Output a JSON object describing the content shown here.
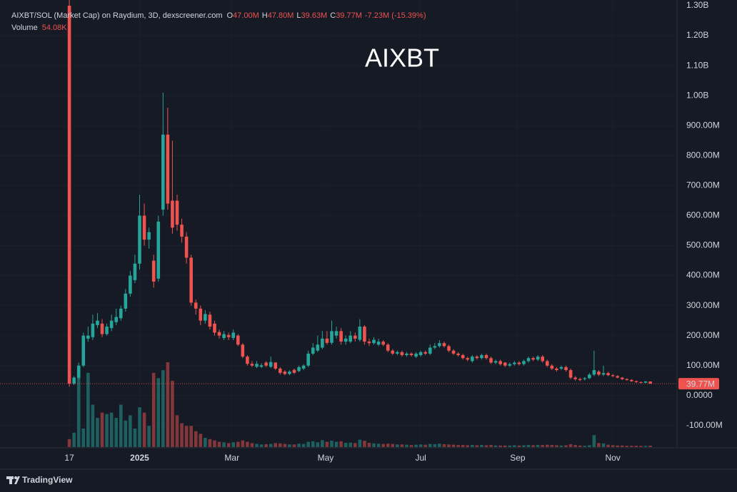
{
  "chart_data": {
    "type": "candlestick",
    "title": "AIXBT",
    "header": {
      "symbol": "AIXBT/SOL (Market Cap) on Raydium, 3D, dexscreener.com",
      "fields": [
        {
          "key": "O",
          "text": "47.00M"
        },
        {
          "key": "H",
          "text": "47.80M"
        },
        {
          "key": "L",
          "text": "39.63M"
        },
        {
          "key": "C",
          "text": "39.77M"
        }
      ],
      "change": "-7.23M (-15.39%)",
      "volume_key": "Volume",
      "volume_text": "54.08K"
    },
    "open": [
      1300,
      40,
      60,
      100,
      190,
      195,
      235,
      240,
      205,
      225,
      245,
      258,
      290,
      340,
      385,
      440,
      600,
      520,
      450,
      390,
      620,
      870,
      650,
      650,
      570,
      530,
      460,
      310,
      290,
      250,
      270,
      240,
      212,
      192,
      202,
      192,
      200,
      170,
      130,
      106,
      96,
      96,
      110,
      96,
      110,
      90,
      80,
      72,
      86,
      82,
      90,
      100,
      140,
      150,
      160,
      190,
      176,
      200,
      215,
      180,
      180,
      200,
      186,
      230,
      180,
      175,
      170,
      180,
      170,
      150,
      140,
      145,
      135,
      140,
      130,
      135,
      145,
      140,
      160,
      165,
      175,
      165,
      150,
      140,
      135,
      125,
      115,
      130,
      125,
      135,
      125,
      110,
      115,
      110,
      100,
      105,
      110,
      105,
      115,
      125,
      120,
      130,
      115,
      100,
      90,
      90,
      95,
      85,
      60,
      55,
      55,
      58,
      70,
      80,
      70,
      75,
      68,
      65,
      60,
      55,
      52,
      48,
      45,
      43,
      47
    ],
    "high": [
      1320,
      65,
      110,
      210,
      230,
      270,
      275,
      255,
      240,
      270,
      290,
      300,
      355,
      415,
      470,
      670,
      640,
      560,
      470,
      600,
      1010,
      960,
      850,
      670,
      590,
      545,
      470,
      320,
      300,
      285,
      280,
      250,
      220,
      215,
      210,
      220,
      205,
      175,
      135,
      115,
      115,
      108,
      115,
      130,
      112,
      95,
      85,
      85,
      90,
      100,
      105,
      150,
      175,
      200,
      215,
      215,
      250,
      230,
      225,
      200,
      215,
      210,
      255,
      235,
      190,
      195,
      190,
      185,
      175,
      155,
      150,
      150,
      145,
      145,
      145,
      150,
      150,
      170,
      175,
      185,
      180,
      170,
      155,
      145,
      140,
      130,
      135,
      135,
      140,
      140,
      130,
      120,
      120,
      112,
      110,
      115,
      115,
      120,
      130,
      130,
      135,
      135,
      120,
      105,
      95,
      100,
      100,
      90,
      65,
      60,
      62,
      75,
      150,
      85,
      100,
      80,
      72,
      68,
      62,
      58,
      55,
      50,
      47,
      49,
      47.8
    ],
    "low": [
      30,
      35,
      55,
      95,
      180,
      185,
      225,
      195,
      200,
      215,
      235,
      250,
      280,
      330,
      375,
      420,
      500,
      490,
      360,
      380,
      600,
      620,
      540,
      550,
      510,
      440,
      300,
      270,
      235,
      240,
      220,
      200,
      190,
      185,
      185,
      185,
      165,
      125,
      100,
      95,
      92,
      92,
      95,
      92,
      85,
      70,
      68,
      68,
      72,
      78,
      85,
      95,
      135,
      145,
      155,
      170,
      170,
      190,
      170,
      170,
      175,
      180,
      180,
      170,
      165,
      170,
      165,
      165,
      145,
      135,
      135,
      130,
      130,
      130,
      125,
      130,
      135,
      135,
      155,
      160,
      160,
      145,
      135,
      130,
      120,
      115,
      110,
      120,
      120,
      120,
      105,
      105,
      100,
      95,
      95,
      100,
      100,
      100,
      110,
      115,
      115,
      110,
      95,
      85,
      80,
      85,
      80,
      55,
      50,
      48,
      50,
      55,
      65,
      65,
      65,
      65,
      62,
      58,
      52,
      50,
      46,
      43,
      41,
      42,
      39.63
    ],
    "close": [
      40,
      60,
      100,
      200,
      200,
      240,
      250,
      205,
      230,
      250,
      262,
      290,
      340,
      400,
      440,
      600,
      520,
      545,
      380,
      580,
      870,
      640,
      560,
      570,
      530,
      460,
      310,
      290,
      250,
      272,
      230,
      210,
      200,
      205,
      195,
      210,
      170,
      130,
      106,
      100,
      106,
      101,
      100,
      112,
      90,
      76,
      72,
      80,
      76,
      95,
      100,
      140,
      160,
      170,
      190,
      176,
      215,
      215,
      180,
      190,
      200,
      190,
      230,
      180,
      175,
      186,
      180,
      170,
      150,
      140,
      145,
      135,
      140,
      135,
      140,
      145,
      140,
      160,
      165,
      175,
      165,
      150,
      140,
      135,
      125,
      120,
      130,
      125,
      135,
      125,
      110,
      115,
      105,
      100,
      105,
      110,
      105,
      115,
      125,
      120,
      130,
      115,
      100,
      90,
      85,
      95,
      85,
      60,
      55,
      52,
      58,
      70,
      85,
      70,
      75,
      68,
      65,
      60,
      55,
      52,
      48,
      45,
      43,
      47,
      39.77
    ],
    "volume": [
      300000,
      540000,
      2900000,
      700000,
      2800000,
      1600000,
      1100000,
      1300000,
      1250000,
      1300000,
      1100000,
      1600000,
      1000000,
      1200000,
      700000,
      1500000,
      1300000,
      800000,
      2800000,
      2600000,
      2900000,
      3200000,
      2500000,
      1200000,
      900000,
      800000,
      800000,
      600000,
      500000,
      350000,
      300000,
      250000,
      200000,
      180000,
      150000,
      180000,
      200000,
      250000,
      200000,
      150000,
      120000,
      100000,
      110000,
      120000,
      150000,
      140000,
      120000,
      100000,
      100000,
      130000,
      120000,
      200000,
      220000,
      180000,
      260000,
      200000,
      240000,
      200000,
      220000,
      160000,
      170000,
      150000,
      280000,
      240000,
      160000,
      140000,
      130000,
      120000,
      130000,
      120000,
      100000,
      100000,
      90000,
      80000,
      90000,
      100000,
      90000,
      120000,
      110000,
      130000,
      110000,
      100000,
      90000,
      80000,
      80000,
      70000,
      80000,
      70000,
      80000,
      70000,
      80000,
      60000,
      60000,
      60000,
      60000,
      70000,
      60000,
      70000,
      80000,
      70000,
      80000,
      80000,
      90000,
      80000,
      70000,
      60000,
      70000,
      110000,
      80000,
      60000,
      50000,
      70000,
      450000,
      150000,
      140000,
      90000,
      70000,
      60000,
      60000,
      50000,
      50000,
      50000,
      45000,
      45000,
      54080
    ],
    "up_color": "#26a69a",
    "down_color": "#ef5350",
    "last_price_label": "39.77M",
    "ylim": [
      -174,
      1319
    ],
    "yticks": [
      {
        "value": -100,
        "label": "-100.00M"
      },
      {
        "value": 0,
        "label": "0.0000"
      },
      {
        "value": 100,
        "label": "100.00M"
      },
      {
        "value": 200,
        "label": "200.00M"
      },
      {
        "value": 300,
        "label": "300.00M"
      },
      {
        "value": 400,
        "label": "400.00M"
      },
      {
        "value": 500,
        "label": "500.00M"
      },
      {
        "value": 600,
        "label": "600.00M"
      },
      {
        "value": 700,
        "label": "700.00M"
      },
      {
        "value": 800,
        "label": "800.00M"
      },
      {
        "value": 900,
        "label": "900.00M"
      },
      {
        "value": 1000,
        "label": "1.00B"
      },
      {
        "value": 1100,
        "label": "1.10B"
      },
      {
        "value": 1200,
        "label": "1.20B"
      },
      {
        "value": 1300,
        "label": "1.30B"
      }
    ],
    "xlim": [
      -14.8,
      129.7
    ],
    "xticks": [
      {
        "value": 0,
        "label": "17"
      },
      {
        "value": 15,
        "label": "2025"
      },
      {
        "value": 34.7,
        "label": "Mar"
      },
      {
        "value": 54.7,
        "label": "May"
      },
      {
        "value": 75,
        "label": "Jul"
      },
      {
        "value": 95.7,
        "label": "Sep"
      },
      {
        "value": 116,
        "label": "Nov"
      }
    ],
    "grid": true,
    "footer": "TradingView"
  }
}
